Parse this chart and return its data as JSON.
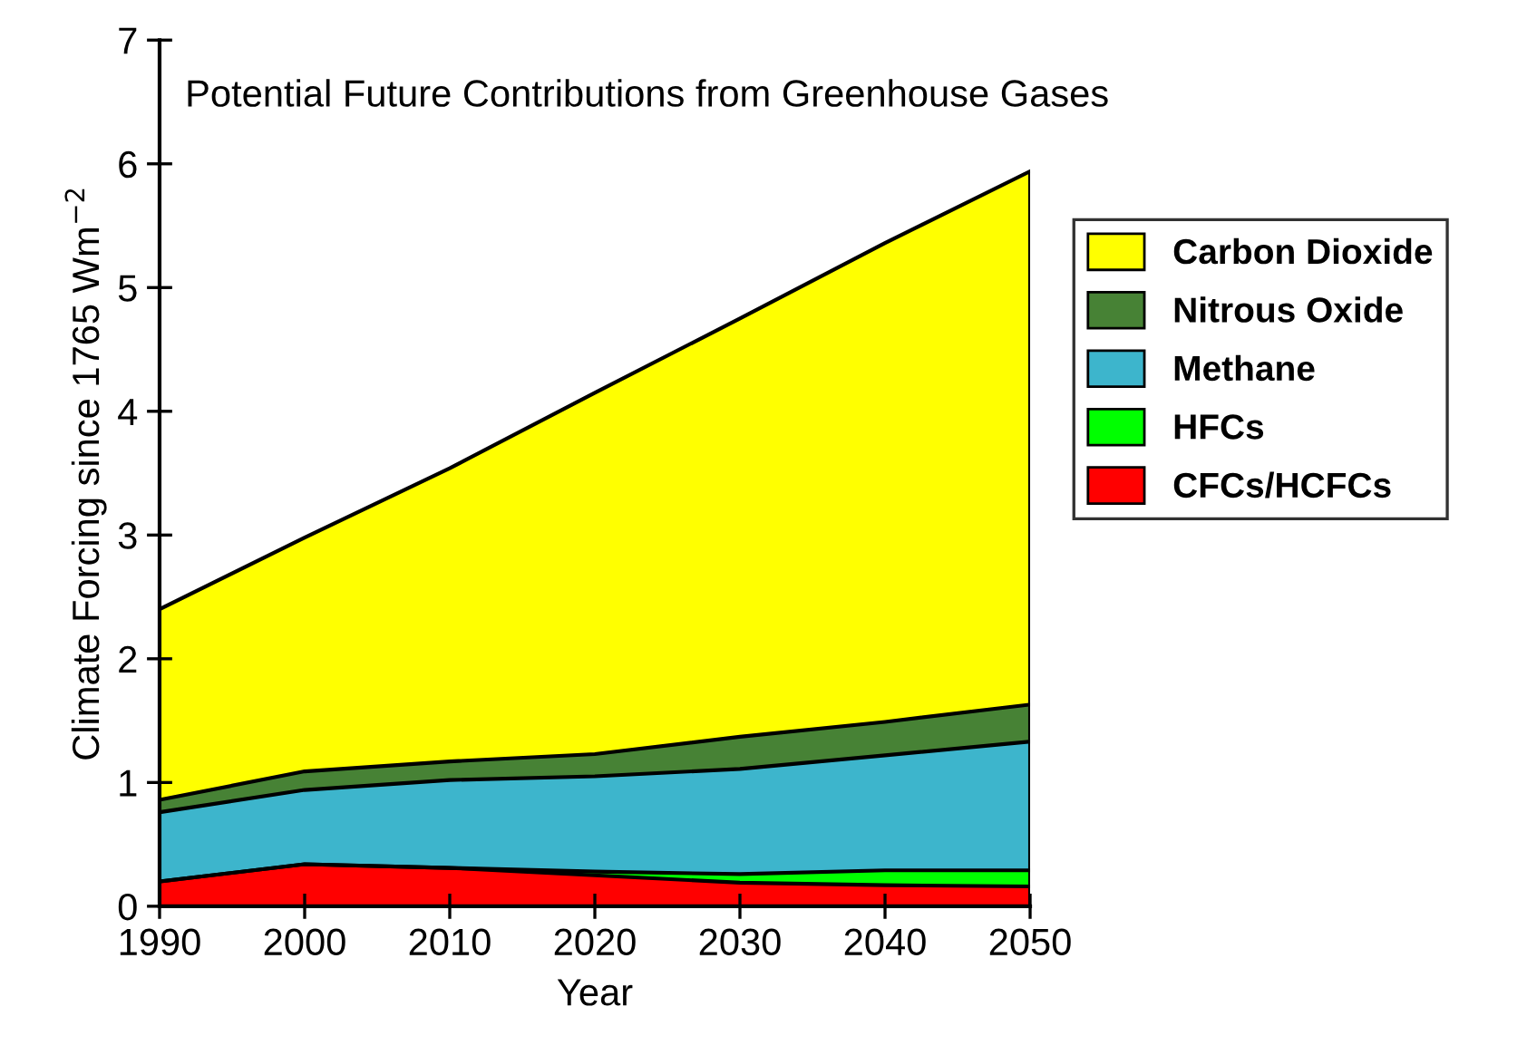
{
  "chart_data": {
    "type": "area",
    "stacked": true,
    "title": "Potential Future Contributions from Greenhouse Gases",
    "xlabel": "Year",
    "ylabel": "Climate Forcing since 1765 Wm$^{−2}$",
    "x": [
      1990,
      2000,
      2010,
      2020,
      2030,
      2040,
      2050
    ],
    "series": [
      {
        "name": "CFCs/HCFCs",
        "color": "#ff0000",
        "values": [
          0.2,
          0.34,
          0.31,
          0.25,
          0.19,
          0.17,
          0.16
        ]
      },
      {
        "name": "HFCs",
        "color": "#00ff00",
        "values": [
          0,
          0,
          0,
          0.03,
          0.07,
          0.12,
          0.13
        ]
      },
      {
        "name": "Methane",
        "color": "#3db5cc",
        "values": [
          0.56,
          0.6,
          0.71,
          0.77,
          0.85,
          0.93,
          1.04
        ]
      },
      {
        "name": "Nitrous Oxide",
        "color": "#478235",
        "values": [
          0.1,
          0.15,
          0.15,
          0.18,
          0.26,
          0.27,
          0.3
        ]
      },
      {
        "name": "Carbon Dioxide",
        "color": "#ffff00",
        "values": [
          1.54,
          1.89,
          2.37,
          2.92,
          3.38,
          3.87,
          4.31
        ]
      }
    ],
    "xlim": [
      1990,
      2050
    ],
    "xticks": [
      1990,
      2000,
      2010,
      2020,
      2030,
      2040,
      2050
    ],
    "ylim": [
      0,
      7
    ],
    "yticks": [
      0,
      1,
      2,
      3,
      4,
      5,
      6,
      7
    ],
    "grid": false,
    "legend": "right"
  }
}
